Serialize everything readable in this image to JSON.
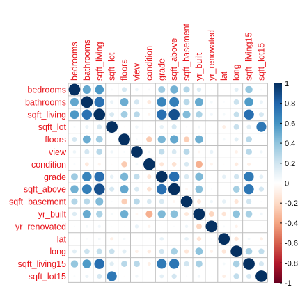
{
  "chart_data": {
    "type": "heatmap",
    "method": "circle",
    "variables": [
      "bedrooms",
      "bathrooms",
      "sqft_living",
      "sqft_lot",
      "floors",
      "view",
      "condition",
      "grade",
      "sqft_above",
      "sqft_basement",
      "yr_built",
      "yr_renovated",
      "lat",
      "long",
      "sqft_living15",
      "sqft_lot15"
    ],
    "matrix": [
      [
        1.0,
        0.52,
        0.58,
        0.03,
        0.18,
        0.08,
        0.03,
        0.36,
        0.48,
        0.3,
        0.15,
        0.02,
        -0.01,
        0.13,
        0.39,
        0.03
      ],
      [
        0.52,
        1.0,
        0.75,
        0.09,
        0.5,
        0.19,
        -0.12,
        0.66,
        0.69,
        0.28,
        0.51,
        0.05,
        0.02,
        0.22,
        0.57,
        0.09
      ],
      [
        0.58,
        0.75,
        1.0,
        0.17,
        0.35,
        0.28,
        -0.06,
        0.76,
        0.88,
        0.44,
        0.32,
        0.06,
        0.05,
        0.24,
        0.76,
        0.18
      ],
      [
        0.03,
        0.09,
        0.17,
        1.0,
        -0.01,
        0.07,
        -0.01,
        0.11,
        0.18,
        0.02,
        0.05,
        0.01,
        -0.09,
        0.23,
        0.14,
        0.72
      ],
      [
        0.18,
        0.5,
        0.35,
        -0.01,
        1.0,
        0.03,
        -0.26,
        0.46,
        0.52,
        -0.25,
        0.49,
        0.01,
        0.05,
        0.13,
        0.28,
        -0.01
      ],
      [
        0.08,
        0.19,
        0.28,
        0.07,
        0.03,
        1.0,
        0.05,
        0.25,
        0.17,
        0.28,
        -0.05,
        0.1,
        0.01,
        -0.08,
        0.28,
        0.07
      ],
      [
        0.03,
        -0.12,
        -0.06,
        -0.01,
        -0.26,
        0.05,
        1.0,
        -0.14,
        -0.16,
        0.17,
        -0.36,
        -0.06,
        -0.01,
        -0.11,
        -0.09,
        -0.0
      ],
      [
        0.36,
        0.66,
        0.76,
        0.11,
        0.46,
        0.25,
        -0.14,
        1.0,
        0.76,
        0.17,
        0.45,
        0.01,
        0.11,
        0.2,
        0.71,
        0.12
      ],
      [
        0.48,
        0.69,
        0.88,
        0.18,
        0.52,
        0.17,
        -0.16,
        0.76,
        1.0,
        -0.05,
        0.42,
        0.02,
        0.0,
        0.34,
        0.73,
        0.19
      ],
      [
        0.3,
        0.28,
        0.44,
        0.02,
        -0.25,
        0.28,
        0.17,
        0.17,
        -0.05,
        1.0,
        -0.13,
        0.07,
        0.11,
        -0.14,
        0.2,
        0.02
      ],
      [
        0.15,
        0.51,
        0.32,
        0.05,
        0.49,
        -0.05,
        -0.36,
        0.45,
        0.42,
        -0.13,
        1.0,
        -0.22,
        -0.15,
        0.41,
        0.33,
        0.07
      ],
      [
        0.02,
        0.05,
        0.06,
        0.01,
        0.01,
        0.1,
        -0.06,
        0.01,
        0.02,
        0.07,
        -0.22,
        1.0,
        0.03,
        -0.07,
        -0.0,
        0.01
      ],
      [
        -0.01,
        0.02,
        0.05,
        -0.09,
        0.05,
        0.01,
        -0.01,
        0.11,
        0.0,
        0.11,
        -0.15,
        0.03,
        1.0,
        -0.14,
        0.05,
        -0.09
      ],
      [
        0.13,
        0.22,
        0.24,
        0.23,
        0.13,
        -0.08,
        -0.11,
        0.2,
        0.34,
        -0.14,
        0.41,
        -0.07,
        -0.14,
        1.0,
        0.33,
        0.25
      ],
      [
        0.39,
        0.57,
        0.76,
        0.14,
        0.28,
        0.28,
        -0.09,
        0.71,
        0.73,
        0.2,
        0.33,
        -0.0,
        0.05,
        0.33,
        1.0,
        0.18
      ],
      [
        0.03,
        0.09,
        0.18,
        0.72,
        -0.01,
        0.07,
        -0.0,
        0.12,
        0.19,
        0.02,
        0.07,
        0.01,
        -0.09,
        0.25,
        0.18,
        1.0
      ]
    ],
    "colorbar": {
      "range": [
        -1,
        1
      ],
      "ticks": [
        "1",
        "0.8",
        "0.6",
        "0.4",
        "0.2",
        "0",
        "-0.2",
        "-0.4",
        "-0.6",
        "-0.8",
        "-1"
      ]
    },
    "colors": {
      "label": "#e8141b",
      "grid": "#bfbfbf",
      "palette": [
        "#67001f",
        "#b2182b",
        "#d6604d",
        "#f4a582",
        "#fddbc7",
        "#ffffff",
        "#d1e5f0",
        "#92c5de",
        "#4393c3",
        "#2166ac",
        "#053061"
      ]
    }
  }
}
